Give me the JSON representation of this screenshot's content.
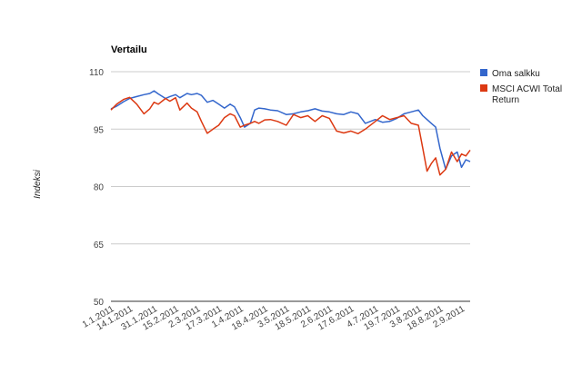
{
  "chart_data": {
    "type": "line",
    "title": "Vertailu",
    "xlabel": "",
    "ylabel": "Indeksi",
    "ylim": [
      50,
      110
    ],
    "yticks": [
      50,
      65,
      80,
      95,
      110
    ],
    "ytick_labels": [
      "50",
      "65",
      "80",
      "95",
      "110"
    ],
    "grid": true,
    "legend": "right",
    "xticks": [
      "1.1.2011",
      "14.1.2011",
      "31.1.2011",
      "15.2.2011",
      "2.3.2011",
      "17.3.2011",
      "1.4.2011",
      "18.4.2011",
      "3.5.2011",
      "18.5.2011",
      "2.6.2011",
      "17.6.2011",
      "4.7.2011",
      "19.7.2011",
      "3.8.2011",
      "18.8.2011",
      "2.9.2011"
    ],
    "series": [
      {
        "name": "Oma salkku",
        "color": "#3366cc",
        "x": [
          "1.1.2011",
          "5.1.2011",
          "10.1.2011",
          "14.1.2011",
          "19.1.2011",
          "24.1.2011",
          "28.1.2011",
          "31.1.2011",
          "3.2.2011",
          "8.2.2011",
          "11.2.2011",
          "15.2.2011",
          "18.2.2011",
          "23.2.2011",
          "26.2.2011",
          "2.3.2011",
          "5.3.2011",
          "9.3.2011",
          "13.3.2011",
          "17.3.2011",
          "21.3.2011",
          "25.3.2011",
          "28.3.2011",
          "1.4.2011",
          "4.4.2011",
          "8.4.2011",
          "11.4.2011",
          "14.4.2011",
          "18.4.2011",
          "22.4.2011",
          "27.4.2011",
          "3.5.2011",
          "8.5.2011",
          "13.5.2011",
          "18.5.2011",
          "23.5.2011",
          "28.5.2011",
          "2.6.2011",
          "7.6.2011",
          "12.6.2011",
          "17.6.2011",
          "22.6.2011",
          "27.6.2011",
          "4.7.2011",
          "9.7.2011",
          "14.7.2011",
          "19.7.2011",
          "24.7.2011",
          "29.7.2011",
          "3.8.2011",
          "6.8.2011",
          "9.8.2011",
          "12.8.2011",
          "15.8.2011",
          "18.8.2011",
          "22.8.2011",
          "26.8.2011",
          "30.8.2011",
          "2.9.2011",
          "5.9.2011",
          "8.9.2011"
        ],
        "values": [
          100.3,
          101.0,
          102.2,
          103.0,
          103.5,
          104.0,
          104.3,
          105.0,
          104.2,
          103.0,
          103.5,
          104.0,
          103.2,
          104.3,
          104.0,
          104.3,
          103.8,
          102.0,
          102.5,
          101.5,
          100.5,
          101.5,
          100.8,
          98.0,
          95.5,
          96.5,
          100.0,
          100.5,
          100.3,
          100.0,
          99.8,
          98.8,
          99.0,
          99.5,
          99.8,
          100.3,
          99.7,
          99.5,
          99.0,
          98.8,
          99.5,
          99.0,
          96.5,
          97.5,
          96.8,
          97.0,
          97.8,
          99.0,
          99.5,
          100.0,
          98.5,
          97.5,
          96.5,
          95.5,
          90.0,
          84.5,
          88.0,
          89.0,
          85.0,
          87.0,
          86.5
        ]
      },
      {
        "name": "MSCI ACWI Total Return",
        "color": "#dc3912",
        "x": [
          "1.1.2011",
          "5.1.2011",
          "10.1.2011",
          "14.1.2011",
          "19.1.2011",
          "24.1.2011",
          "28.1.2011",
          "31.1.2011",
          "3.2.2011",
          "8.2.2011",
          "11.2.2011",
          "15.2.2011",
          "18.2.2011",
          "23.2.2011",
          "26.2.2011",
          "2.3.2011",
          "5.3.2011",
          "9.3.2011",
          "13.3.2011",
          "17.3.2011",
          "21.3.2011",
          "25.3.2011",
          "28.3.2011",
          "1.4.2011",
          "4.4.2011",
          "8.4.2011",
          "11.4.2011",
          "14.4.2011",
          "18.4.2011",
          "22.4.2011",
          "27.4.2011",
          "3.5.2011",
          "8.5.2011",
          "13.5.2011",
          "18.5.2011",
          "23.5.2011",
          "28.5.2011",
          "2.6.2011",
          "7.6.2011",
          "12.6.2011",
          "17.6.2011",
          "22.6.2011",
          "27.6.2011",
          "4.7.2011",
          "9.7.2011",
          "14.7.2011",
          "19.7.2011",
          "24.7.2011",
          "29.7.2011",
          "3.8.2011",
          "6.8.2011",
          "9.8.2011",
          "12.8.2011",
          "15.8.2011",
          "18.8.2011",
          "22.8.2011",
          "26.8.2011",
          "30.8.2011",
          "2.9.2011",
          "5.9.2011",
          "8.9.2011"
        ],
        "values": [
          100.0,
          101.5,
          102.8,
          103.3,
          101.5,
          99.0,
          100.3,
          102.0,
          101.5,
          103.0,
          102.3,
          103.2,
          100.0,
          101.8,
          100.5,
          99.5,
          97.0,
          93.9,
          95.0,
          96.0,
          98.0,
          99.0,
          98.5,
          95.5,
          96.0,
          96.5,
          97.0,
          96.5,
          97.4,
          97.5,
          97.0,
          96.0,
          98.8,
          98.0,
          98.5,
          97.0,
          98.5,
          97.8,
          94.5,
          94.0,
          94.5,
          93.8,
          95.0,
          97.0,
          98.5,
          97.5,
          98.0,
          98.5,
          96.5,
          96.0,
          90.0,
          84.0,
          86.0,
          87.5,
          83.0,
          84.5,
          89.0,
          86.5,
          88.5,
          88.0,
          89.5
        ]
      }
    ]
  }
}
